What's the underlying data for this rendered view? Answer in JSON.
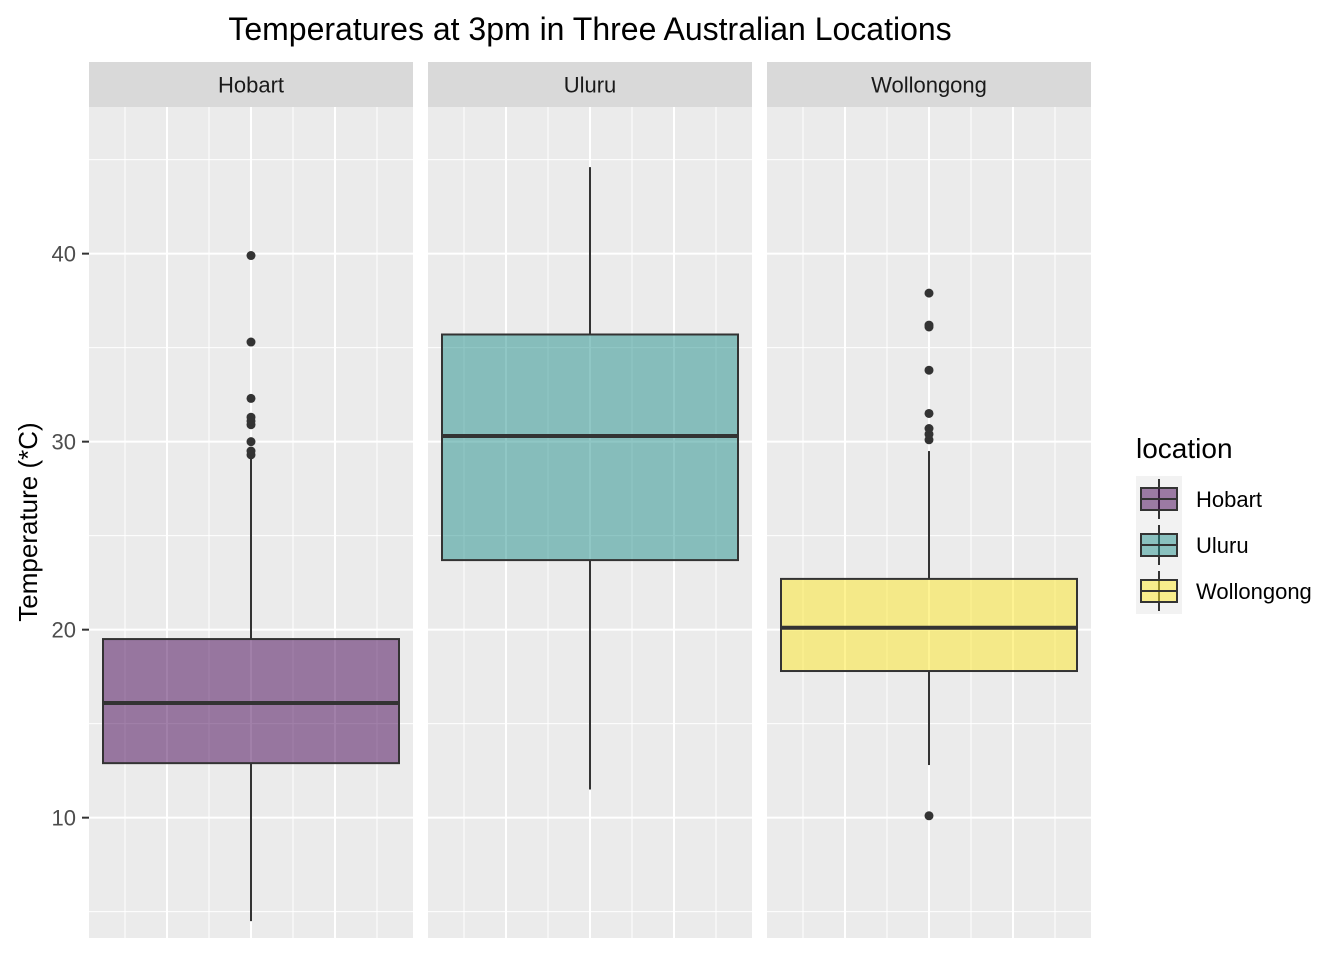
{
  "chart_data": {
    "type": "boxplot",
    "title": "Temperatures at 3pm in Three Australian Locations",
    "xlabel": "",
    "ylabel": "Temperature (*C)",
    "ylim": [
      3.6,
      47.8
    ],
    "yticks": [
      10,
      20,
      30,
      40
    ],
    "grid": true,
    "facets": true,
    "legend": {
      "title": "location",
      "placement": "right"
    },
    "series": [
      {
        "name": "Hobart",
        "color": "#440154",
        "whisker_low": 4.5,
        "q1": 12.9,
        "median": 16.1,
        "q3": 19.5,
        "whisker_high": 29.3,
        "outliers": [
          29.3,
          29.5,
          30.0,
          30.9,
          31.1,
          31.3,
          32.3,
          35.3,
          39.9
        ]
      },
      {
        "name": "Uluru",
        "color": "#21908C",
        "whisker_low": 11.5,
        "q1": 23.7,
        "median": 30.3,
        "q3": 35.7,
        "whisker_high": 44.6,
        "outliers": []
      },
      {
        "name": "Wollongong",
        "color": "#FDE725",
        "whisker_low": 12.8,
        "q1": 17.8,
        "median": 20.1,
        "q3": 22.7,
        "whisker_high": 29.5,
        "outliers": [
          10.1,
          30.1,
          30.4,
          30.7,
          31.5,
          33.8,
          36.1,
          36.2,
          37.9
        ]
      }
    ]
  },
  "style": {
    "panel_bg": "#EBEBEB",
    "strip_bg": "#D9D9D9",
    "grid": "#FFFFFF",
    "box_alpha": 0.5,
    "line": "#333333"
  }
}
